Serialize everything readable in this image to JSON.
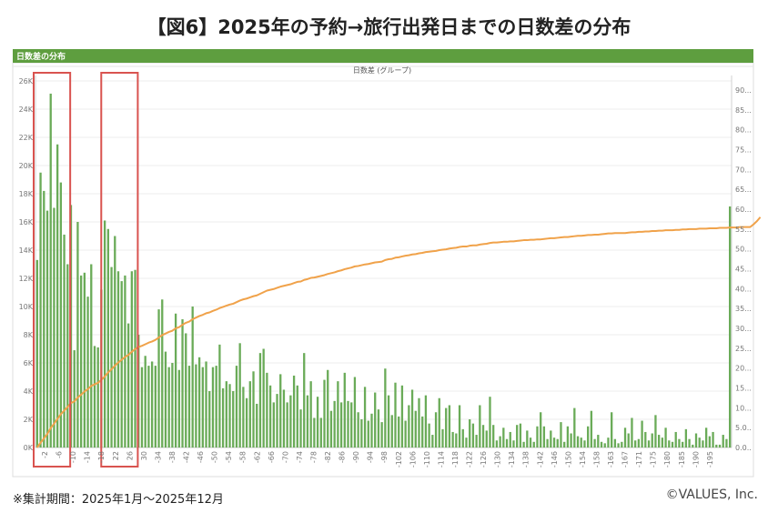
{
  "page": {
    "title": "【図6】2025年の予約→旅行出発日までの日数差の分布",
    "panel_title": "日数差の分布",
    "footnote": "※集計期間：2025年1月〜2025年12月",
    "copyright": "©VALUES, Inc."
  },
  "colors": {
    "bar": "#6aab58",
    "line": "#f0a24a",
    "highlight_box": "#d9534f",
    "header": "#5e9e3f"
  },
  "chart_data": {
    "type": "bar",
    "xlabel": "日数差 (グループ)",
    "y_left_ticks": [
      "0K",
      "2K",
      "4K",
      "6K",
      "8K",
      "10K",
      "12K",
      "14K",
      "16K",
      "18K",
      "20K",
      "22K",
      "24K",
      "26K"
    ],
    "y_left_lim": [
      0,
      26000
    ],
    "y_right_ticks": [
      "0.0..",
      "5.0..",
      "10...",
      "15...",
      "20...",
      "25...",
      "30...",
      "35...",
      "40...",
      "45...",
      "50...",
      "55...",
      "60...",
      "65...",
      "70...",
      "75...",
      "80...",
      "85...",
      "90..."
    ],
    "y_right_lim": [
      0,
      90
    ],
    "x_tick_labels": [
      "-2",
      "-6",
      "-10",
      "-14",
      "-18",
      "22",
      "26",
      "30",
      "-34",
      "-38",
      "-42",
      "-46",
      "-50",
      "-54",
      "-58",
      "-62",
      "-66",
      "-70",
      "-74",
      "-78",
      "-82",
      "-86",
      "-90",
      "-94",
      "-98",
      "-102",
      "-106",
      "-110",
      "-114",
      "-118",
      "-122",
      "-126",
      "-130",
      "-134",
      "-138",
      "-142",
      "-146",
      "-150",
      "-154",
      "-158",
      "-163",
      "-167",
      "-171",
      "-175",
      "-180",
      "-185",
      "-190",
      "-195"
    ],
    "series": [
      {
        "kind": "bar",
        "values": [
          13300,
          19500,
          18200,
          16800,
          25100,
          17000,
          21500,
          18800,
          15100,
          13000,
          17200,
          6900,
          16000,
          12200,
          12400,
          10700,
          13000,
          7200,
          7100,
          11200,
          16100,
          15500,
          12800,
          15000,
          12500,
          11800,
          12200,
          8800,
          12500,
          12600,
          8000,
          5700,
          6500,
          5800,
          6100,
          5800,
          9800,
          10500,
          6800,
          5700,
          6000,
          9500,
          5500,
          9100,
          8100,
          5800,
          10000,
          5900,
          6400,
          5700,
          6100,
          4000,
          5700,
          5800,
          7300,
          4200,
          4700,
          4500,
          4000,
          5800,
          7400,
          4300,
          3500,
          4700,
          5400,
          3100,
          6700,
          7000,
          5300,
          4400,
          3200,
          3800,
          5200,
          4100,
          3200,
          3700,
          5100,
          4400,
          2700,
          6700,
          3700,
          4700,
          2100,
          3600,
          2100,
          4800,
          5500,
          2600,
          3300,
          4700,
          3200,
          5300,
          3300,
          3200,
          5000,
          2500,
          2000,
          4300,
          1900,
          2400,
          3900,
          2700,
          1800,
          5600,
          3700,
          2300,
          4600,
          2200,
          4400,
          1900,
          3000,
          4100,
          2600,
          3500,
          2200,
          3700,
          1700,
          900,
          2500,
          3500,
          1300,
          2800,
          3000,
          1100,
          1000,
          3000,
          1300,
          700,
          2000,
          1700,
          900,
          3000,
          1600,
          1200,
          3600,
          1600,
          500,
          800,
          1400,
          600,
          1100,
          500,
          1600,
          1700,
          400,
          1200,
          700,
          400,
          1500,
          2500,
          1500,
          600,
          1200,
          700,
          600,
          1800,
          400,
          1500,
          1000,
          2800,
          800,
          700,
          500,
          1500,
          2600,
          600,
          900,
          400,
          300,
          700,
          2500,
          600,
          300,
          400,
          1400,
          1000,
          2100,
          500,
          600,
          1900,
          1100,
          500,
          1000,
          2300,
          900,
          700,
          1400,
          500,
          400,
          1100,
          600,
          400,
          1300,
          600,
          200,
          1000,
          700,
          500,
          1400,
          800,
          1100,
          200,
          200,
          900,
          600,
          17100
        ],
        "values_unit": "bookings"
      },
      {
        "kind": "line",
        "values": [
          0.0,
          1.2,
          2.3,
          3.4,
          4.9,
          6.0,
          7.2,
          8.4,
          9.3,
          10.2,
          11.2,
          11.6,
          12.6,
          13.3,
          14.1,
          14.7,
          15.5,
          15.9,
          16.3,
          17.0,
          17.9,
          18.9,
          19.7,
          20.6,
          21.4,
          22.1,
          22.8,
          23.3,
          24.1,
          24.8,
          25.3,
          25.6,
          26.0,
          26.4,
          26.7,
          27.1,
          27.7,
          28.3,
          28.7,
          29.1,
          29.4,
          30.0,
          30.3,
          30.9,
          31.4,
          31.7,
          32.3,
          32.7,
          33.1,
          33.4,
          33.8,
          34.0,
          34.4,
          34.7,
          35.1,
          35.4,
          35.7,
          36.0,
          36.2,
          36.6,
          37.0,
          37.3,
          37.5,
          37.8,
          38.1,
          38.3,
          38.7,
          39.1,
          39.5,
          39.7,
          39.9,
          40.2,
          40.5,
          40.7,
          40.9,
          41.1,
          41.4,
          41.7,
          41.8,
          42.2,
          42.4,
          42.7,
          42.8,
          43.0,
          43.2,
          43.4,
          43.7,
          43.9,
          44.1,
          44.4,
          44.6,
          44.9,
          45.1,
          45.3,
          45.6,
          45.7,
          45.9,
          46.1,
          46.2,
          46.4,
          46.6,
          46.7,
          46.8,
          47.2,
          47.4,
          47.5,
          47.8,
          47.9,
          48.1,
          48.3,
          48.4,
          48.6,
          48.7,
          48.9,
          49.0,
          49.2,
          49.3,
          49.4,
          49.5,
          49.7,
          49.8,
          49.9,
          50.1,
          50.2,
          50.3,
          50.5,
          50.6,
          50.6,
          50.8,
          50.9,
          50.9,
          51.1,
          51.2,
          51.3,
          51.5,
          51.6,
          51.6,
          51.7,
          51.8,
          51.8,
          51.9,
          51.9,
          52.0,
          52.1,
          52.2,
          52.2,
          52.3,
          52.3,
          52.4,
          52.4,
          52.5,
          52.6,
          52.7,
          52.7,
          52.8,
          52.9,
          53.0,
          53.0,
          53.1,
          53.2,
          53.3,
          53.3,
          53.4,
          53.5,
          53.5,
          53.6,
          53.6,
          53.7,
          53.8,
          53.9,
          53.9,
          54.0,
          54.0,
          54.0,
          54.0,
          54.1,
          54.2,
          54.2,
          54.3,
          54.3,
          54.4,
          54.4,
          54.5,
          54.5,
          54.6,
          54.6,
          54.7,
          54.7,
          54.7,
          54.8,
          54.8,
          54.9,
          54.9,
          55.0,
          55.0,
          55.0,
          55.1,
          55.1,
          55.1,
          55.2,
          55.2,
          55.2,
          55.3,
          55.3,
          55.3,
          55.4,
          55.4,
          55.4,
          55.5,
          55.5,
          55.5,
          55.5,
          56.2,
          57.0,
          58.0
        ],
        "values_unit": "cumulative %"
      }
    ],
    "highlight_ranges": [
      [
        0,
        9
      ],
      [
        20,
        29
      ]
    ],
    "grid": true
  }
}
